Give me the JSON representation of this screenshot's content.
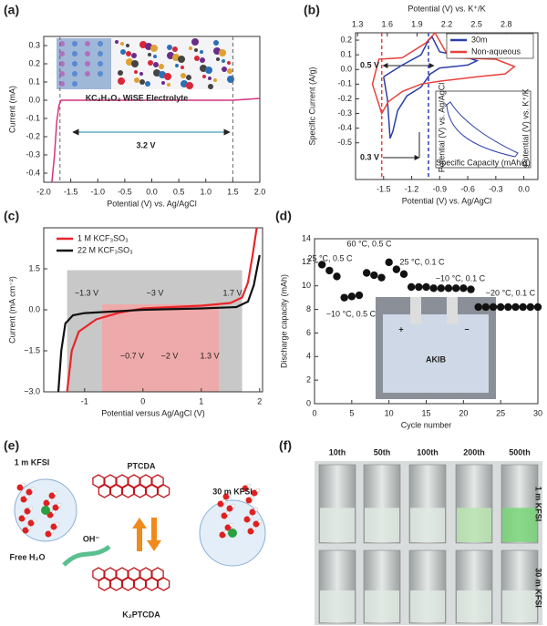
{
  "chart_data": [
    {
      "type": "line",
      "panel": "(a)",
      "xlabel": "Potential (V) vs. Ag/AgCl",
      "ylabel": "Current (mA)",
      "xlim": [
        -2.0,
        2.0
      ],
      "xticks": [
        {
          "value": -2.0,
          "label": "-2.0"
        },
        -1.5,
        {
          "value": -1.0,
          "label": "-1.0"
        },
        -0.5,
        {
          "value": 0.0,
          "label": "0.0"
        },
        0.5,
        {
          "value": 1.0,
          "label": "1.0"
        },
        1.5,
        {
          "value": 2.0,
          "label": "2.0"
        }
      ],
      "ylim": [
        -0.45,
        0.35
      ],
      "yticks": [
        -0.4,
        -0.3,
        -0.2,
        -0.1,
        {
          "value": 0.0,
          "label": "0.0"
        },
        0.1,
        0.2,
        0.3
      ],
      "series": [
        {
          "color": "#d6337f",
          "x": [
            -1.85,
            -1.8,
            -1.76,
            -1.72,
            -1.68,
            -1.5,
            0.0,
            1.3,
            1.5,
            2.0
          ],
          "values": [
            -0.45,
            -0.3,
            -0.12,
            -0.03,
            0.0,
            0.0,
            0.0,
            0.0,
            0.0,
            0.01
          ]
        }
      ],
      "vlines": [
        {
          "x": -1.7,
          "color": "#666666"
        },
        {
          "x": 1.5,
          "color": "#666666"
        }
      ],
      "annotations": [
        "KC₂H₃O₂ WiSE Electrolyte",
        "3.2 V"
      ]
    },
    {
      "type": "line",
      "panel": "(b)",
      "xlabel": "Potential (V) vs. Ag/AgCl",
      "ylabel": "Specific Current (A/g)",
      "x2label": "Potential (V) vs. K⁺/K",
      "xlim": [
        -1.8,
        0.15
      ],
      "xticks": [
        -1.5,
        -1.2,
        -0.9,
        -0.6,
        -0.3,
        {
          "value": 0.0,
          "label": "0.0"
        }
      ],
      "x2lim": [
        1.28,
        3.12
      ],
      "x2ticks": [
        1.3,
        1.6,
        1.9,
        2.2,
        2.5,
        2.8
      ],
      "ylim": [
        -0.75,
        0.25
      ],
      "yticks": [
        0.2,
        0.1,
        {
          "value": 0.0,
          "label": "0.0"
        },
        -0.1,
        -0.2,
        -0.3,
        -0.4,
        -0.5
      ],
      "series": [
        {
          "name": "30m",
          "color": "#2b3fa8",
          "x": [
            -1.5,
            -1.46,
            -1.43,
            -1.4,
            -1.35,
            -1.25,
            -1.1,
            -1.0,
            -0.9,
            -0.6,
            -0.5,
            -0.6,
            -0.9,
            -0.98,
            -1.02,
            -1.1,
            -1.3,
            -1.5
          ],
          "values": [
            -0.05,
            -0.2,
            -0.47,
            -0.42,
            -0.28,
            -0.18,
            -0.12,
            -0.03,
            0.01,
            0.03,
            0.06,
            0.08,
            0.12,
            0.22,
            0.2,
            0.1,
            0.03,
            -0.05
          ]
        },
        {
          "name": "Non-aqueous",
          "color": "#e8413c",
          "x": [
            -1.62,
            -1.52,
            -1.45,
            -1.3,
            -1.1,
            -0.9,
            -0.5,
            -0.2,
            -0.1,
            -0.3,
            -0.8,
            -0.95,
            -1.05,
            -1.3,
            -1.55,
            -1.62
          ],
          "values": [
            -0.1,
            -0.3,
            -0.22,
            -0.15,
            -0.1,
            -0.08,
            -0.05,
            -0.03,
            0.02,
            0.07,
            0.08,
            0.25,
            0.18,
            0.08,
            0.07,
            -0.1
          ]
        }
      ],
      "vlines": [
        {
          "x": -1.52,
          "color": "#e8413c"
        },
        {
          "x": -1.02,
          "color": "#2b3fa8"
        }
      ],
      "annotations": [
        "0.5 V",
        "0.3 V"
      ],
      "inset": {
        "ylabel": "Potential (V) vs. Ag/AgCl",
        "y2label": "Potential (V) vs. K⁺/K",
        "xlabel": "Specific Capacity (mAh/g)"
      }
    },
    {
      "type": "line",
      "panel": "(c)",
      "xlabel": "Potential versus Ag/AgCl (V)",
      "ylabel": "Current (mA cm⁻²)",
      "xlim": [
        -1.7,
        2.05
      ],
      "xticks": [
        -1,
        0,
        1,
        2
      ],
      "ylim": [
        -3.0,
        3.0
      ],
      "yticks": [
        {
          "value": -3.0,
          "label": "−3.0"
        },
        {
          "value": -1.5,
          "label": "−1.5"
        },
        {
          "value": 0.0,
          "label": "0.0"
        },
        1.5
      ],
      "regions": [
        {
          "x": [
            -1.3,
            1.7
          ],
          "y": [
            -3.0,
            1.45
          ],
          "color": "#c8c8c8"
        },
        {
          "x": [
            -0.7,
            1.3
          ],
          "y": [
            -3.0,
            0.2
          ],
          "color": "#eeaaaa"
        }
      ],
      "series": [
        {
          "name": "1 M  KCF₃SO₃",
          "color": "#e8262b",
          "x": [
            -1.3,
            -1.22,
            -1.1,
            -0.8,
            -0.4,
            0.0,
            0.5,
            1.0,
            1.5,
            1.7,
            1.8,
            1.88,
            1.95
          ],
          "values": [
            -3.0,
            -1.5,
            -0.8,
            -0.35,
            -0.1,
            0.05,
            0.1,
            0.15,
            0.25,
            0.45,
            1.0,
            2.0,
            3.0
          ]
        },
        {
          "name": "22 M KCF₃SO₃",
          "color": "#111111",
          "x": [
            -1.45,
            -1.4,
            -1.33,
            -1.2,
            -1.0,
            0.0,
            1.0,
            1.6,
            1.8,
            1.9,
            2.0
          ],
          "values": [
            -3.0,
            -1.5,
            -0.5,
            -0.2,
            -0.12,
            0.0,
            0.05,
            0.1,
            0.3,
            0.9,
            2.0
          ]
        }
      ],
      "annotations": [
        "−1.3 V",
        "~3 V",
        "1.7 V",
        "−0.7 V",
        "~2 V",
        "1.3 V"
      ]
    },
    {
      "type": "scatter",
      "panel": "(d)",
      "xlabel": "Cycle number",
      "ylabel": "Discharge capacity (mAh)",
      "xlim": [
        0,
        30
      ],
      "xticks": [
        0,
        5,
        10,
        15,
        20,
        25,
        30
      ],
      "ylim": [
        0,
        14
      ],
      "yticks": [
        0,
        2,
        4,
        6,
        8,
        10,
        12,
        14
      ],
      "series": [
        {
          "color": "#111111",
          "x": [
            1,
            2,
            3,
            4,
            5,
            6,
            7,
            8,
            9,
            10,
            11,
            12,
            13,
            14,
            15,
            16,
            17,
            18,
            19,
            20,
            21,
            22,
            23,
            24,
            25,
            26,
            27,
            28,
            29,
            30
          ],
          "values": [
            11.8,
            11.3,
            10.8,
            9.0,
            9.1,
            9.2,
            11.1,
            10.9,
            10.7,
            12.0,
            11.4,
            11.0,
            9.9,
            9.9,
            9.9,
            9.8,
            9.8,
            9.8,
            9.8,
            9.8,
            9.7,
            8.2,
            8.2,
            8.2,
            8.2,
            8.2,
            8.2,
            8.2,
            8.2,
            8.2
          ]
        }
      ],
      "annotations": [
        "25 °C, 0.5 C",
        "−10 °C, 0.5 C",
        "60 °C, 0.5 C",
        "25 °C, 0.1 C",
        "−10 °C, 0.1 C",
        "−20 °C, 0.1 C"
      ],
      "photo": {
        "text": "AKIB",
        "plus": "+",
        "minus": "−"
      }
    }
  ],
  "panel_e": {
    "label": "(e)",
    "texts": [
      "1 m KFSI",
      "PTCDA",
      "30 m KFSI",
      "Free H₂O",
      "OH⁻",
      "K₂PTCDA"
    ]
  },
  "panel_f": {
    "label": "(f)",
    "columns": [
      "10th",
      "50th",
      "100th",
      "200th",
      "500th"
    ],
    "rows": [
      "1 m KFSI",
      "30 m KFSI"
    ]
  }
}
